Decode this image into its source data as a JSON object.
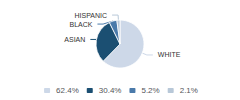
{
  "chart_data": {
    "type": "pie",
    "categories": [
      "WHITE",
      "ASIAN",
      "BLACK",
      "HISPANIC"
    ],
    "values": [
      62.4,
      30.4,
      5.2,
      2.1
    ],
    "value_labels": [
      "62.4%",
      "30.4%",
      "5.2%",
      "2.1%"
    ],
    "colors": [
      "#cdd8e8",
      "#1b4f72",
      "#4a7aaa",
      "#b8c8d8"
    ],
    "legend": "bottom"
  }
}
